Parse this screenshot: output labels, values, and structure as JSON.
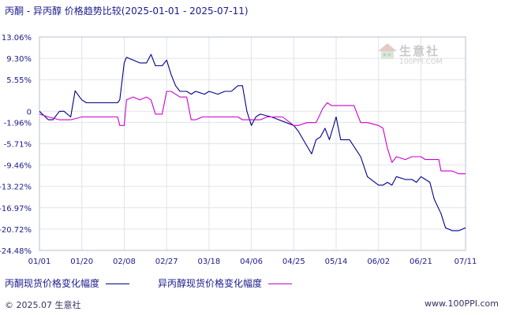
{
  "chart_data": {
    "type": "line",
    "title": "丙酮 - 异丙醇 价格趋势比较(2025-01-01 - 2025-07-11)",
    "x_ticks": [
      "01/01",
      "01/20",
      "02/08",
      "02/27",
      "03/18",
      "04/06",
      "04/25",
      "05/14",
      "06/02",
      "06/21",
      "07/11"
    ],
    "y_ticks": [
      "13.06%",
      "9.30%",
      "5.55%",
      "0",
      "-1.96%",
      "-5.71%",
      "-9.46%",
      "-13.22%",
      "-16.97%",
      "-20.72%",
      "-24.48%"
    ],
    "ylim": [
      -24.48,
      13.06
    ],
    "grid": true,
    "legend_placement": "bottom",
    "series": [
      {
        "name": "丙酮现货价格变化幅度",
        "color": "#00008b",
        "x": [
          "01/01",
          "01/05",
          "01/07",
          "01/10",
          "01/12",
          "01/15",
          "01/17",
          "01/19",
          "01/20",
          "01/22",
          "01/27",
          "02/05",
          "02/06",
          "02/08",
          "02/09",
          "02/12",
          "02/15",
          "02/18",
          "02/20",
          "02/22",
          "02/25",
          "02/27",
          "03/01",
          "03/03",
          "03/05",
          "03/08",
          "03/10",
          "03/12",
          "03/16",
          "03/18",
          "03/22",
          "03/25",
          "03/28",
          "03/31",
          "04/02",
          "04/04",
          "04/06",
          "04/08",
          "04/10",
          "04/15",
          "04/25",
          "04/27",
          "04/30",
          "05/03",
          "05/05",
          "05/07",
          "05/09",
          "05/11",
          "05/14",
          "05/16",
          "05/20",
          "05/25",
          "05/28",
          "06/02",
          "06/04",
          "06/06",
          "06/08",
          "06/10",
          "06/14",
          "06/17",
          "06/19",
          "06/21",
          "06/23",
          "06/25",
          "06/27",
          "06/30",
          "07/02",
          "07/05",
          "07/08",
          "07/11"
        ],
        "y": [
          0,
          -1.5,
          -1.5,
          0,
          0,
          -1.0,
          3.6,
          2.5,
          2.0,
          1.5,
          1.5,
          1.5,
          2.0,
          8.5,
          9.5,
          9.0,
          8.5,
          8.5,
          10.0,
          8.0,
          8.0,
          9.0,
          6.5,
          4.5,
          3.5,
          3.5,
          3.0,
          3.5,
          3.0,
          3.5,
          3.0,
          3.5,
          3.5,
          4.5,
          4.5,
          0.0,
          -2.5,
          -1.0,
          -0.5,
          -1.0,
          -2.5,
          -3.5,
          -5.5,
          -7.5,
          -5.0,
          -4.5,
          -3.0,
          -5.0,
          -1.0,
          -5.0,
          -5.0,
          -8.0,
          -11.5,
          -13.0,
          -13.0,
          -12.5,
          -13.0,
          -11.5,
          -12.0,
          -12.0,
          -12.5,
          -11.5,
          -12.0,
          -12.5,
          -15.5,
          -18.0,
          -20.5,
          -21.0,
          -21.0,
          -20.5
        ]
      },
      {
        "name": "异丙醇现货价格变化幅度",
        "color": "#cc00cc",
        "x": [
          "01/01",
          "01/05",
          "01/10",
          "01/15",
          "01/20",
          "01/25",
          "02/01",
          "02/05",
          "02/06",
          "02/08",
          "02/09",
          "02/12",
          "02/15",
          "02/18",
          "02/20",
          "02/22",
          "02/25",
          "02/27",
          "03/01",
          "03/05",
          "03/08",
          "03/10",
          "03/12",
          "03/15",
          "03/18",
          "03/22",
          "03/25",
          "03/28",
          "03/31",
          "04/02",
          "04/04",
          "04/06",
          "04/08",
          "04/10",
          "04/13",
          "04/16",
          "04/20",
          "04/25",
          "04/27",
          "05/01",
          "05/05",
          "05/08",
          "05/10",
          "05/12",
          "05/14",
          "05/18",
          "05/22",
          "05/25",
          "05/28",
          "06/02",
          "06/04",
          "06/06",
          "06/08",
          "06/10",
          "06/14",
          "06/17",
          "06/19",
          "06/21",
          "06/23",
          "06/25",
          "06/27",
          "06/29",
          "06/30",
          "07/02",
          "07/05",
          "07/08",
          "07/11"
        ],
        "y": [
          -0.5,
          -1.0,
          -1.5,
          -1.5,
          -1.0,
          -1.0,
          -1.0,
          -1.0,
          -2.5,
          -2.5,
          2.0,
          2.5,
          2.0,
          2.5,
          2.0,
          -0.5,
          -0.5,
          3.5,
          3.5,
          2.5,
          2.5,
          -1.5,
          -1.5,
          -1.0,
          -1.0,
          -1.0,
          -1.0,
          -1.0,
          -1.0,
          -1.5,
          -1.5,
          -1.5,
          -1.5,
          -1.5,
          -1.0,
          -1.0,
          -1.0,
          -2.5,
          -2.5,
          -2.0,
          -2.0,
          0.5,
          1.5,
          1.0,
          1.0,
          1.0,
          1.0,
          -2.0,
          -2.0,
          -2.5,
          -3.0,
          -6.5,
          -9.0,
          -8.0,
          -8.5,
          -8.0,
          -8.0,
          -8.0,
          -8.5,
          -8.5,
          -8.5,
          -8.5,
          -10.5,
          -10.5,
          -10.5,
          -11.0,
          -11.0
        ]
      }
    ]
  },
  "footer": {
    "left": "© 2025.07 生意社",
    "right": "www.100PPI.com"
  },
  "watermark": {
    "text": "生意社",
    "url": "100PPI.COM"
  }
}
